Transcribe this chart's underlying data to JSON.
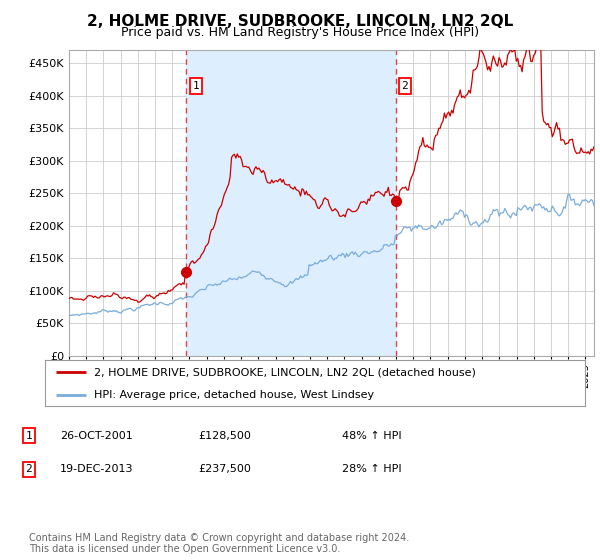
{
  "title": "2, HOLME DRIVE, SUDBROOKE, LINCOLN, LN2 2QL",
  "subtitle": "Price paid vs. HM Land Registry's House Price Index (HPI)",
  "ylim": [
    0,
    470000
  ],
  "yticks": [
    0,
    50000,
    100000,
    150000,
    200000,
    250000,
    300000,
    350000,
    400000,
    450000
  ],
  "sale1_date": 2001.82,
  "sale1_price": 128500,
  "sale1_label": "1",
  "sale2_date": 2013.97,
  "sale2_price": 237500,
  "sale2_label": "2",
  "line_red": "#cc0000",
  "line_blue": "#7aaddb",
  "shade_color": "#ddeeff",
  "dashed_color": "#dd4444",
  "legend_entries": [
    "2, HOLME DRIVE, SUDBROOKE, LINCOLN, LN2 2QL (detached house)",
    "HPI: Average price, detached house, West Lindsey"
  ],
  "table_rows": [
    [
      "1",
      "26-OCT-2001",
      "£128,500",
      "48% ↑ HPI"
    ],
    [
      "2",
      "19-DEC-2013",
      "£237,500",
      "28% ↑ HPI"
    ]
  ],
  "footer": "Contains HM Land Registry data © Crown copyright and database right 2024.\nThis data is licensed under the Open Government Licence v3.0.",
  "background_color": "#ffffff",
  "grid_color": "#cccccc",
  "xmin": 1995.0,
  "xmax": 2025.5
}
